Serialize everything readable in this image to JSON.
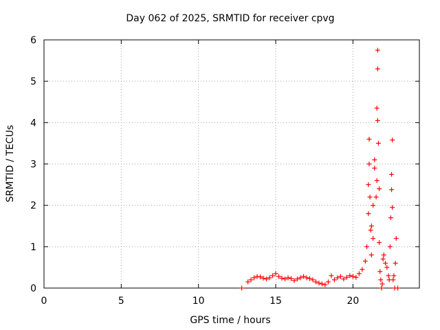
{
  "chart_data": {
    "type": "scatter",
    "title": "Day 062 of 2025, SRMTID for receiver cpvg",
    "xlabel": "GPS time / hours",
    "ylabel": "SRMTID / TECUs",
    "xlim": [
      0,
      24.3
    ],
    "ylim": [
      0,
      6
    ],
    "x_ticks": [
      0,
      5,
      10,
      15,
      20
    ],
    "y_ticks": [
      0,
      1,
      2,
      3,
      4,
      5,
      6
    ],
    "grid": true,
    "marker": "+",
    "color": "#ff0000",
    "series": [
      {
        "name": "SRMTID",
        "points": [
          [
            12.8,
            0.0
          ],
          [
            13.2,
            0.15
          ],
          [
            13.4,
            0.2
          ],
          [
            13.6,
            0.25
          ],
          [
            13.8,
            0.28
          ],
          [
            14.0,
            0.27
          ],
          [
            14.2,
            0.24
          ],
          [
            14.4,
            0.22
          ],
          [
            14.6,
            0.25
          ],
          [
            14.8,
            0.3
          ],
          [
            15.0,
            0.35
          ],
          [
            15.2,
            0.28
          ],
          [
            15.4,
            0.24
          ],
          [
            15.6,
            0.22
          ],
          [
            15.8,
            0.25
          ],
          [
            16.0,
            0.23
          ],
          [
            16.2,
            0.18
          ],
          [
            16.4,
            0.22
          ],
          [
            16.6,
            0.25
          ],
          [
            16.8,
            0.28
          ],
          [
            17.0,
            0.25
          ],
          [
            17.2,
            0.23
          ],
          [
            17.4,
            0.2
          ],
          [
            17.6,
            0.15
          ],
          [
            17.8,
            0.12
          ],
          [
            18.0,
            0.1
          ],
          [
            18.2,
            0.08
          ],
          [
            18.4,
            0.15
          ],
          [
            18.6,
            0.3
          ],
          [
            18.8,
            0.2
          ],
          [
            19.0,
            0.25
          ],
          [
            19.2,
            0.28
          ],
          [
            19.4,
            0.22
          ],
          [
            19.6,
            0.26
          ],
          [
            19.8,
            0.3
          ],
          [
            20.0,
            0.28
          ],
          [
            20.2,
            0.26
          ],
          [
            20.4,
            0.35
          ],
          [
            20.6,
            0.45
          ],
          [
            20.8,
            0.65
          ],
          [
            20.9,
            1.0
          ],
          [
            21.0,
            1.8
          ],
          [
            21.0,
            2.5
          ],
          [
            21.05,
            3.0
          ],
          [
            21.05,
            3.6
          ],
          [
            21.1,
            2.2
          ],
          [
            21.15,
            1.4
          ],
          [
            21.2,
            0.8
          ],
          [
            21.2,
            1.5
          ],
          [
            21.3,
            2.0
          ],
          [
            21.3,
            1.2
          ],
          [
            21.4,
            2.9
          ],
          [
            21.4,
            3.1
          ],
          [
            21.5,
            2.2
          ],
          [
            21.55,
            2.6
          ],
          [
            21.55,
            4.35
          ],
          [
            21.6,
            5.3
          ],
          [
            21.6,
            5.75
          ],
          [
            21.6,
            4.05
          ],
          [
            21.65,
            3.5
          ],
          [
            21.7,
            2.4
          ],
          [
            21.7,
            1.1
          ],
          [
            21.75,
            0.4
          ],
          [
            21.8,
            0.2
          ],
          [
            21.85,
            0.0
          ],
          [
            21.9,
            0.1
          ],
          [
            21.95,
            0.7
          ],
          [
            22.0,
            0.8
          ],
          [
            22.1,
            0.6
          ],
          [
            22.2,
            0.5
          ],
          [
            22.3,
            0.3
          ],
          [
            22.35,
            0.2
          ],
          [
            22.4,
            1.0
          ],
          [
            22.45,
            1.7
          ],
          [
            22.5,
            2.38
          ],
          [
            22.5,
            2.75
          ],
          [
            22.55,
            3.58
          ],
          [
            22.55,
            1.95
          ],
          [
            22.6,
            0.2
          ],
          [
            22.65,
            0.3
          ],
          [
            22.7,
            0.0
          ],
          [
            22.75,
            0.6
          ],
          [
            22.8,
            1.2
          ],
          [
            22.9,
            0.0
          ]
        ]
      }
    ]
  }
}
